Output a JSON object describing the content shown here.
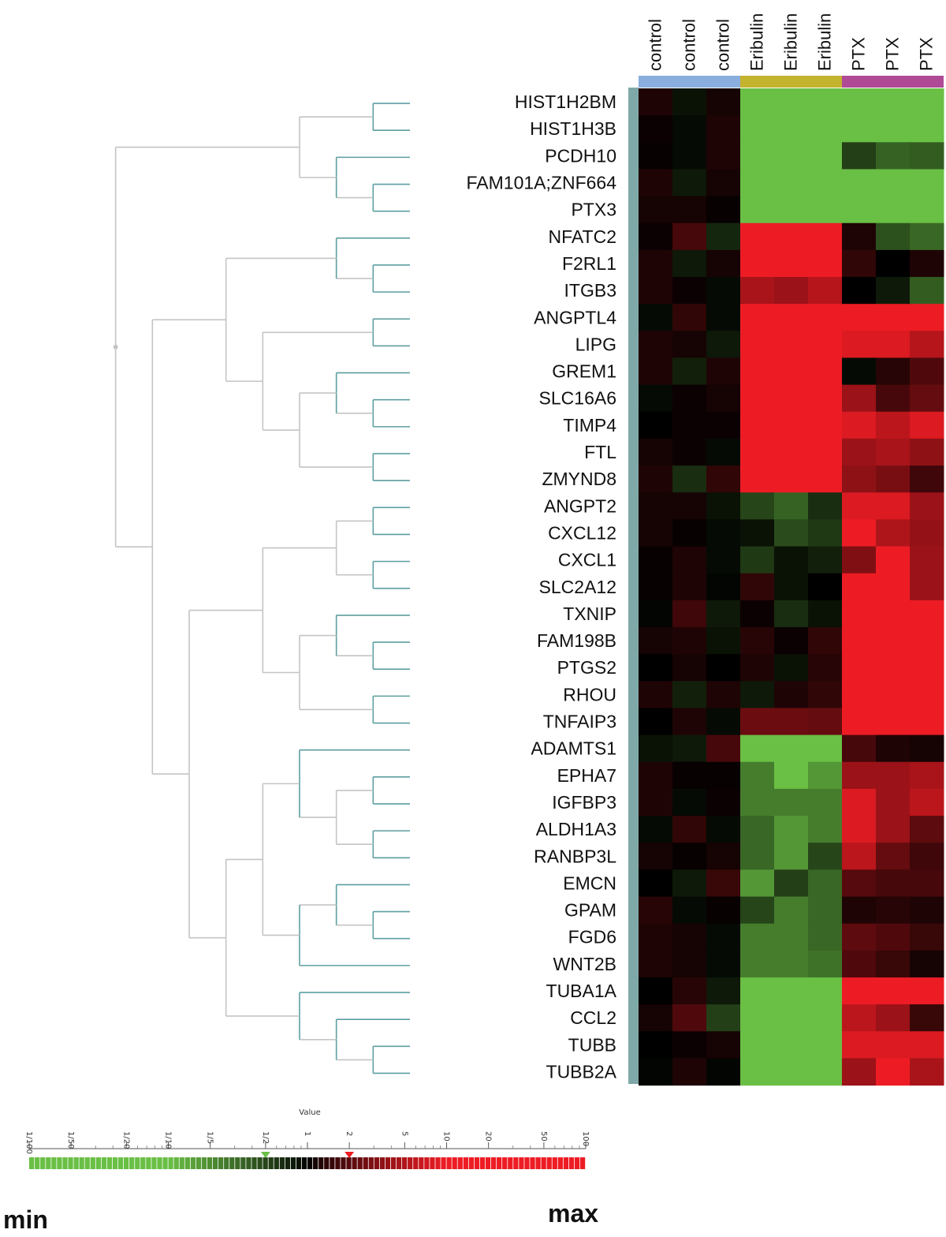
{
  "chart_data": {
    "type": "heatmap",
    "columns": [
      "control",
      "control",
      "control",
      "Eribulin",
      "Eribulin",
      "Eribulin",
      "PTX",
      "PTX",
      "PTX"
    ],
    "column_groups": [
      {
        "label": "control",
        "color": "#8aaedd",
        "span": 3
      },
      {
        "label": "Eribulin",
        "color": "#c4b32e",
        "span": 3
      },
      {
        "label": "PTX",
        "color": "#b04a96",
        "span": 3
      }
    ],
    "rows": [
      "HIST1H2BM",
      "HIST1H3B",
      "PCDH10",
      "FAM101A;ZNF664",
      "PTX3",
      "NFATC2",
      "F2RL1",
      "ITGB3",
      "ANGPTL4",
      "LIPG",
      "GREM1",
      "SLC16A6",
      "TIMP4",
      "FTL",
      "ZMYND8",
      "ANGPT2",
      "CXCL12",
      "CXCL1",
      "SLC2A12",
      "TXNIP",
      "FAM198B",
      "PTGS2",
      "RHOU",
      "TNFAIP3",
      "ADAMTS1",
      "EPHA7",
      "IGFBP3",
      "ALDH1A3",
      "RANBP3L",
      "EMCN",
      "GPAM",
      "FGD6",
      "WNT2B",
      "TUBA1A",
      "CCL2",
      "TUBB",
      "TUBB2A"
    ],
    "log2_fold_change": [
      [
        0.3,
        -0.2,
        0.2,
        -6.6,
        -6.6,
        -6.6,
        -6.6,
        -6.6,
        -6.6
      ],
      [
        0.1,
        -0.1,
        0.3,
        -6.6,
        -6.6,
        -6.6,
        -6.6,
        -6.6,
        -6.6
      ],
      [
        0.05,
        -0.1,
        0.3,
        -6.6,
        -6.6,
        -6.6,
        -0.9,
        -1.5,
        -1.4
      ],
      [
        0.3,
        -0.3,
        0.2,
        -6.6,
        -6.6,
        -6.6,
        -6.6,
        -6.6,
        -6.6
      ],
      [
        0.2,
        0.2,
        0.05,
        -6.6,
        -6.6,
        -6.6,
        -6.6,
        -6.6,
        -6.6
      ],
      [
        0.1,
        0.8,
        -0.5,
        6.6,
        6.6,
        6.6,
        0.3,
        -1.2,
        -1.6
      ],
      [
        0.3,
        -0.3,
        0.2,
        3.5,
        3.5,
        3.5,
        0.5,
        0,
        0.3
      ],
      [
        0.3,
        0.1,
        -0.1,
        2.2,
        2.0,
        2.4,
        0,
        -0.3,
        -1.4
      ],
      [
        -0.1,
        0.5,
        -0.1,
        6.6,
        6.6,
        6.6,
        6.6,
        6.6,
        6.6
      ],
      [
        0.3,
        0.2,
        -0.3,
        6.6,
        6.6,
        6.6,
        3.0,
        3.0,
        2.4
      ],
      [
        0.3,
        -0.4,
        0.3,
        6.6,
        6.6,
        6.6,
        -0.1,
        0.4,
        0.9
      ],
      [
        -0.1,
        0.1,
        0.2,
        6.6,
        6.6,
        6.6,
        2.0,
        0.8,
        1.2
      ],
      [
        0,
        0.1,
        0.1,
        6.6,
        6.6,
        6.6,
        3.0,
        2.5,
        3.0
      ],
      [
        0.2,
        0.1,
        -0.1,
        6.6,
        6.6,
        6.6,
        2.0,
        2.2,
        1.8
      ],
      [
        0.3,
        -0.6,
        0.5,
        6.6,
        6.6,
        6.6,
        1.8,
        1.5,
        0.7
      ],
      [
        0.2,
        0.2,
        -0.2,
        -1.0,
        -1.5,
        -0.6,
        3.0,
        3.0,
        2.0
      ],
      [
        0.2,
        0.05,
        -0.1,
        -0.2,
        -1.1,
        -0.8,
        4.0,
        2.3,
        1.9
      ],
      [
        0.05,
        0.3,
        -0.1,
        -0.8,
        -0.2,
        -0.4,
        1.6,
        4.0,
        2.0
      ],
      [
        0.05,
        0.3,
        -0.05,
        0.5,
        -0.2,
        0,
        4.0,
        4.0,
        2.0
      ],
      [
        -0.05,
        0.7,
        -0.3,
        0.1,
        -0.6,
        -0.2,
        6.6,
        6.6,
        6.6
      ],
      [
        0.2,
        0.3,
        -0.2,
        0.4,
        0.1,
        0.5,
        6.6,
        6.6,
        6.6
      ],
      [
        0,
        0.2,
        0,
        0.3,
        -0.2,
        0.4,
        6.6,
        6.6,
        6.6
      ],
      [
        0.3,
        -0.4,
        0.3,
        -0.3,
        0.3,
        0.5,
        6.6,
        6.6,
        6.6
      ],
      [
        0,
        0.3,
        -0.1,
        1.3,
        1.3,
        1.2,
        6.6,
        6.6,
        6.6
      ],
      [
        -0.2,
        -0.3,
        0.8,
        -6.6,
        -6.6,
        -6.6,
        0.8,
        0.3,
        0.2
      ],
      [
        0.3,
        0.05,
        0.05,
        -2.0,
        -6.6,
        -2.5,
        2.0,
        2.0,
        2.2
      ],
      [
        0.3,
        -0.1,
        0.1,
        -2.0,
        -2.0,
        -2.0,
        3.0,
        2.0,
        2.5
      ],
      [
        -0.1,
        0.5,
        -0.1,
        -1.6,
        -2.5,
        -2.0,
        3.0,
        2.0,
        1.1
      ],
      [
        0.2,
        0.05,
        0.2,
        -1.6,
        -2.5,
        -1.0,
        2.5,
        1.2,
        0.7
      ],
      [
        0,
        -0.3,
        0.6,
        -2.5,
        -0.9,
        -1.6,
        1.0,
        0.8,
        0.8
      ],
      [
        0.4,
        -0.1,
        0.05,
        -1.0,
        -2.0,
        -1.6,
        0.3,
        0.4,
        0.3
      ],
      [
        0.3,
        0.2,
        -0.1,
        -2.0,
        -2.0,
        -1.6,
        1.1,
        0.9,
        0.6
      ],
      [
        0.3,
        0.2,
        -0.1,
        -2.0,
        -2.0,
        -1.8,
        0.9,
        0.6,
        0.2
      ],
      [
        0,
        0.4,
        -0.3,
        -6.6,
        -6.6,
        -6.6,
        6.6,
        6.6,
        6.6
      ],
      [
        0.2,
        0.9,
        -0.9,
        -6.6,
        -6.6,
        -6.6,
        2.5,
        2.0,
        0.6
      ],
      [
        0,
        0.1,
        0.2,
        -6.6,
        -6.6,
        -6.6,
        3.0,
        3.0,
        3.0
      ],
      [
        -0.05,
        0.3,
        -0.05,
        -6.6,
        -6.6,
        -6.6,
        2.0,
        4.0,
        2.2
      ]
    ],
    "color_scale": {
      "title": "Value",
      "tick_labels": [
        "1/100",
        "1/50",
        "1/20",
        "1/10",
        "1/5",
        "1/2",
        "1",
        "2",
        "5",
        "10",
        "20",
        "50",
        "100"
      ],
      "tick_values": [
        0.01,
        0.02,
        0.05,
        0.1,
        0.2,
        0.5,
        1,
        2,
        5,
        10,
        20,
        50,
        100
      ],
      "low_color": "#6abf45",
      "mid_color": "#000000",
      "high_color": "#ed1c24",
      "low_marker_value": 0.5,
      "high_marker_value": 2,
      "min_label": "min",
      "max_label": "max"
    }
  }
}
